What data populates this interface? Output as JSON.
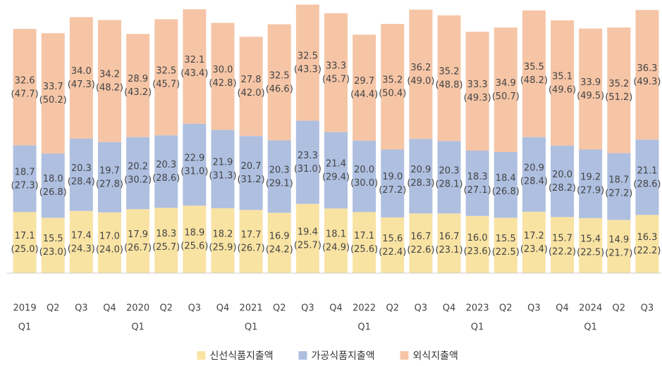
{
  "chart_data": {
    "type": "stacked_bar",
    "categories": [
      [
        "2019",
        "Q1"
      ],
      [
        "Q2"
      ],
      [
        "Q3"
      ],
      [
        "Q4"
      ],
      [
        "2020",
        "Q1"
      ],
      [
        "Q2"
      ],
      [
        "Q3"
      ],
      [
        "Q4"
      ],
      [
        "2021",
        "Q1"
      ],
      [
        "Q2"
      ],
      [
        "Q3"
      ],
      [
        "Q4"
      ],
      [
        "2022",
        "Q1"
      ],
      [
        "Q2"
      ],
      [
        "Q3"
      ],
      [
        "Q4"
      ],
      [
        "2023",
        "Q1"
      ],
      [
        "Q2"
      ],
      [
        "Q3"
      ],
      [
        "Q4"
      ],
      [
        "2024",
        "Q1"
      ],
      [
        "Q2"
      ],
      [
        "Q3"
      ]
    ],
    "ylim": [
      0,
      76.5
    ],
    "legend": "bottom",
    "series": [
      {
        "name": "신선식품지출액",
        "color": "#f9e3a3",
        "values": [
          17.1,
          15.5,
          17.4,
          17.0,
          17.9,
          18.3,
          18.9,
          18.2,
          17.7,
          16.9,
          19.4,
          18.1,
          17.1,
          15.6,
          16.7,
          16.7,
          16.0,
          15.5,
          17.2,
          15.7,
          15.4,
          14.9,
          16.3
        ],
        "value_labels": [
          "17.1",
          "15.5",
          "17.4",
          "17.0",
          "17.9",
          "18.3",
          "18.9",
          "18.2",
          "17.7",
          "16.9",
          "19.4",
          "18.1",
          "17.1",
          "15.6",
          "16.7",
          "16.7",
          "16.0",
          "15.5",
          "17.2",
          "15.7",
          "15.4",
          "14.9",
          "16.3"
        ],
        "share_labels": [
          "(25.0)",
          "(23.0)",
          "(24.3)",
          "(24.0)",
          "(26.7)",
          "(25.7)",
          "(25.6)",
          "(25.9)",
          "(26.7)",
          "(24.2)",
          "(25.7)",
          "(24.9)",
          "(25.6)",
          "(22.4)",
          "(22.6)",
          "(23.1)",
          "(23.6)",
          "(22.5)",
          "(23.4)",
          "(22.2)",
          "(22.5)",
          "(21.7)",
          "(22.2)"
        ]
      },
      {
        "name": "가공식품지출액",
        "color": "#aebfe0",
        "values": [
          18.7,
          18.0,
          20.3,
          19.7,
          20.2,
          20.3,
          22.9,
          21.9,
          20.7,
          20.3,
          23.3,
          21.4,
          20.0,
          19.0,
          20.9,
          20.3,
          18.3,
          18.4,
          20.9,
          20.0,
          19.2,
          18.7,
          21.1
        ],
        "value_labels": [
          "18.7",
          "18.0",
          "20.3",
          "19.7",
          "20.2",
          "20.3",
          "22.9",
          "21.9",
          "20.7",
          "20.3",
          "23.3",
          "21.4",
          "20.0",
          "19.0",
          "20.9",
          "20.3",
          "18.3",
          "18.4",
          "20.9",
          "20.0",
          "19.2",
          "18.7",
          "21.1"
        ],
        "share_labels": [
          "(27.3)",
          "(26.8)",
          "(28.4)",
          "(27.8)",
          "(30.2)",
          "(28.6)",
          "(31.0)",
          "(31.3)",
          "(31.2)",
          "(29.1)",
          "(31.0)",
          "(29.4)",
          "(30.0)",
          "(27.2)",
          "(28.3)",
          "(28.1)",
          "(27.1)",
          "(26.8)",
          "(28.4)",
          "(28.2)",
          "(27.9)",
          "(27.2)",
          "(28.6)"
        ]
      },
      {
        "name": "외식지출액",
        "color": "#f5c5a6",
        "values": [
          32.6,
          33.7,
          34.0,
          34.2,
          28.9,
          32.5,
          32.1,
          30.0,
          27.8,
          32.5,
          32.5,
          33.3,
          29.7,
          35.2,
          36.2,
          35.2,
          33.3,
          34.9,
          35.5,
          35.1,
          33.9,
          35.2,
          36.3
        ],
        "value_labels": [
          "32.6",
          "33.7",
          "34.0",
          "34.2",
          "28.9",
          "32.5",
          "32.1",
          "30.0",
          "27.8",
          "32.5",
          "32.5",
          "33.3",
          "29.7",
          "35.2",
          "36.2",
          "35.2",
          "33.3",
          "34.9",
          "35.5",
          "35.1",
          "33.9",
          "35.2",
          "36.3"
        ],
        "share_labels": [
          "(47.7)",
          "(50.2)",
          "(47.3)",
          "(48.2)",
          "(43.2)",
          "(45.7)",
          "(43.4)",
          "(42.8)",
          "(42.0)",
          "(46.6)",
          "(43.3)",
          "(45.7)",
          "(44.4)",
          "(50.4)",
          "(49.0)",
          "(48.8)",
          "(49.3)",
          "(50.7)",
          "(48.2)",
          "(49.6)",
          "(49.5)",
          "(51.2)",
          "(49.3)"
        ]
      }
    ]
  }
}
